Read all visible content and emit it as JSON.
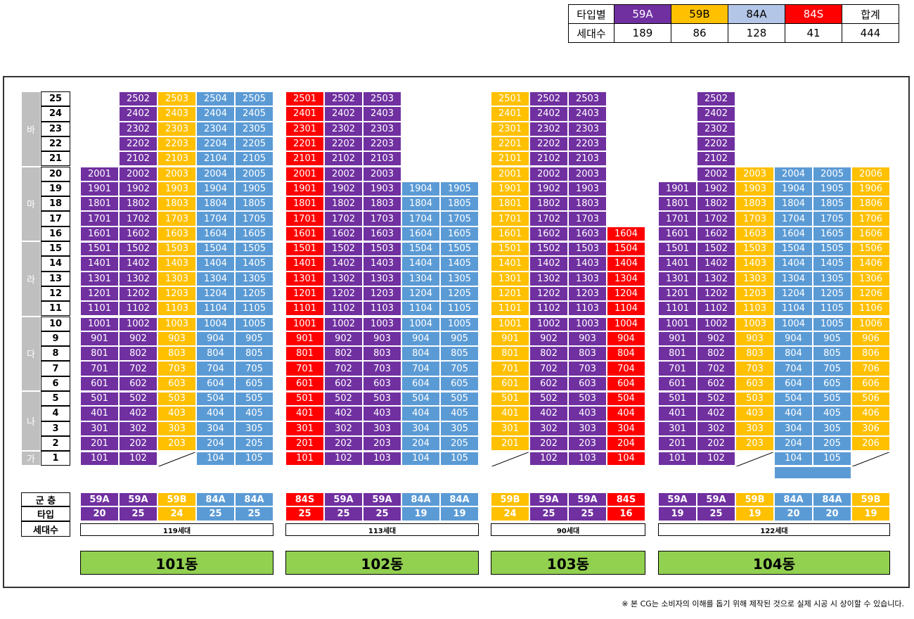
{
  "summary": {
    "header_label": "타입별",
    "count_label": "세대수",
    "types": [
      {
        "type": "59A",
        "count": "189",
        "color": "#7030a0",
        "text_color": "#ffffff"
      },
      {
        "type": "59B",
        "count": "86",
        "color": "#ffc000",
        "text_color": "#000000"
      },
      {
        "type": "84A",
        "count": "128",
        "color": "#b4c6e7",
        "text_color": "#000000"
      },
      {
        "type": "84S",
        "count": "41",
        "color": "#ff0000",
        "text_color": "#ffffff"
      },
      {
        "type": "합계",
        "count": "444",
        "color": "#ffffff",
        "text_color": "#000000"
      }
    ]
  },
  "colors": {
    "59A": "#7030a0",
    "59B": "#ffc000",
    "84A": "#5b9bd5",
    "84S": "#ff0000"
  },
  "zones": [
    {
      "label": "바",
      "top_floor": 25,
      "bottom_floor": 21
    },
    {
      "label": "마",
      "top_floor": 20,
      "bottom_floor": 16
    },
    {
      "label": "라",
      "top_floor": 15,
      "bottom_floor": 11
    },
    {
      "label": "다",
      "top_floor": 10,
      "bottom_floor": 6
    },
    {
      "label": "나",
      "top_floor": 5,
      "bottom_floor": 2
    },
    {
      "label": "가",
      "top_floor": 1,
      "bottom_floor": 1
    }
  ],
  "legend": {
    "zone_label": "군",
    "floor_label": "층",
    "type_label": "타입",
    "units_label": "세대수"
  },
  "buildings": [
    {
      "name": "101동",
      "total": "119세대",
      "lines": [
        {
          "line": "01",
          "type": "59A",
          "top": 20,
          "start": 1,
          "count": "20",
          "missing": []
        },
        {
          "line": "02",
          "type": "59A",
          "top": 25,
          "start": 1,
          "count": "25",
          "missing": []
        },
        {
          "line": "03",
          "type": "59B",
          "top": 25,
          "start": 2,
          "count": "24",
          "missing": [
            1
          ]
        },
        {
          "line": "04",
          "type": "84A",
          "top": 25,
          "start": 1,
          "count": "25",
          "missing": []
        },
        {
          "line": "05",
          "type": "84A",
          "top": 25,
          "start": 1,
          "count": "25",
          "missing": []
        }
      ]
    },
    {
      "name": "102동",
      "total": "113세대",
      "lines": [
        {
          "line": "01",
          "type": "84S",
          "top": 25,
          "start": 1,
          "count": "25",
          "missing": []
        },
        {
          "line": "02",
          "type": "59A",
          "top": 25,
          "start": 1,
          "count": "25",
          "missing": []
        },
        {
          "line": "03",
          "type": "59A",
          "top": 25,
          "start": 1,
          "count": "25",
          "missing": []
        },
        {
          "line": "04",
          "type": "84A",
          "top": 19,
          "start": 1,
          "count": "19",
          "missing": []
        },
        {
          "line": "05",
          "type": "84A",
          "top": 19,
          "start": 1,
          "count": "19",
          "missing": []
        }
      ]
    },
    {
      "name": "103동",
      "total": "90세대",
      "lines": [
        {
          "line": "01",
          "type": "59B",
          "top": 25,
          "start": 2,
          "count": "24",
          "missing": [
            1
          ]
        },
        {
          "line": "02",
          "type": "59A",
          "top": 25,
          "start": 1,
          "count": "25",
          "missing": []
        },
        {
          "line": "03",
          "type": "59A",
          "top": 25,
          "start": 1,
          "count": "25",
          "missing": []
        },
        {
          "line": "04",
          "type": "84S",
          "top": 16,
          "start": 1,
          "count": "16",
          "missing": []
        }
      ]
    },
    {
      "name": "104동",
      "total": "122세대",
      "lines": [
        {
          "line": "01",
          "type": "59A",
          "top": 19,
          "start": 1,
          "count": "19",
          "missing": []
        },
        {
          "line": "02",
          "type": "59A",
          "top": 25,
          "start": 1,
          "count": "25",
          "missing": []
        },
        {
          "line": "03",
          "type": "59B",
          "top": 20,
          "start": 2,
          "count": "19",
          "missing": [
            1
          ]
        },
        {
          "line": "04",
          "type": "84A",
          "top": 20,
          "start": 1,
          "count": "20",
          "missing": []
        },
        {
          "line": "05",
          "type": "84A",
          "top": 20,
          "start": 1,
          "count": "20",
          "missing": []
        },
        {
          "line": "06",
          "type": "59B",
          "top": 20,
          "start": 2,
          "count": "19",
          "missing": [
            1
          ]
        }
      ]
    }
  ],
  "footnote": "※ 본 CG는 소비자의 이해를 돕기 위해 제작된 것으로 실제 시공 시 상이할 수 있습니다."
}
